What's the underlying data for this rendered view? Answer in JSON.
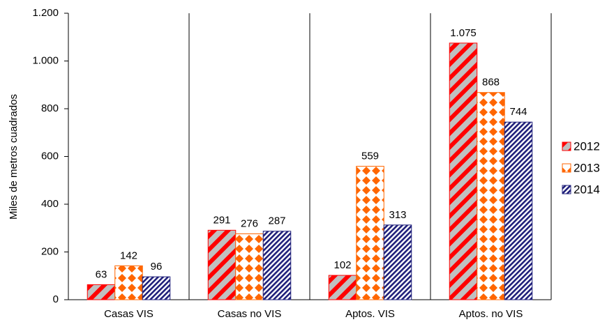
{
  "chart_data": {
    "type": "bar",
    "y_label": "Miles de metros cuadrados",
    "categories": [
      "Casas VIS",
      "Casas no VIS",
      "Aptos. VIS",
      "Aptos. no VIS"
    ],
    "series": [
      {
        "name": "2012",
        "color": "#ff0000",
        "values": [
          63,
          291,
          102,
          1075
        ],
        "value_labels": [
          "63",
          "291",
          "102",
          "1.075"
        ]
      },
      {
        "name": "2013",
        "color": "#ff6600",
        "values": [
          142,
          276,
          559,
          868
        ]
      },
      {
        "name": "2014",
        "color": "#1f1f7a",
        "values": [
          96,
          287,
          313,
          744
        ]
      }
    ],
    "ylim": [
      0,
      1200
    ],
    "yticks": [
      0,
      200,
      400,
      600,
      800,
      {
        "value": 1000,
        "label": "1.000"
      },
      {
        "value": 1200,
        "label": "1.200"
      }
    ],
    "grid": false,
    "legend": "right"
  }
}
